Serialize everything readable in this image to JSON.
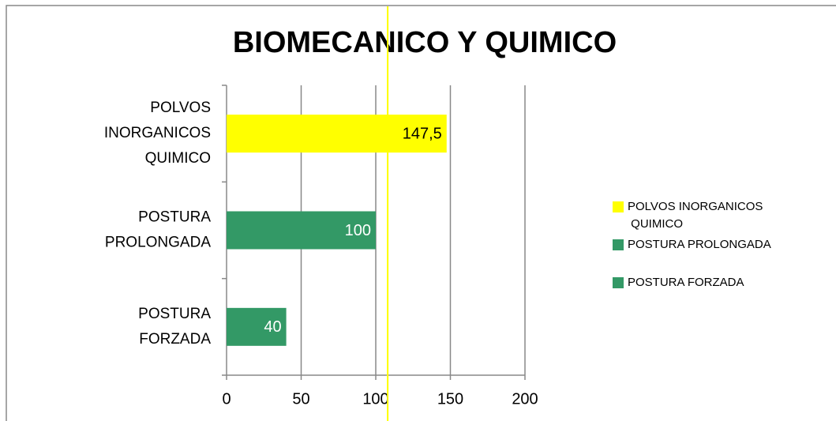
{
  "chart_data": {
    "type": "hbar",
    "title": "BIOMECANICO Y QUIMICO",
    "categories": [
      "POLVOS INORGANICOS QUIMICO",
      "POSTURA PROLONGADA",
      "POSTURA FORZADA"
    ],
    "values": [
      147.5,
      100,
      40
    ],
    "value_labels": [
      "147,5",
      "100",
      "40"
    ],
    "colors": [
      "#ffff00",
      "#339966",
      "#339966"
    ],
    "value_label_colors": [
      "#000000",
      "#ffffff",
      "#ffffff"
    ],
    "reference_line": {
      "value": 108,
      "color": "#ffff00"
    },
    "xlim": [
      0,
      200
    ],
    "xticks": [
      0,
      50,
      100,
      150,
      200
    ],
    "grid": true,
    "legend": "right"
  }
}
